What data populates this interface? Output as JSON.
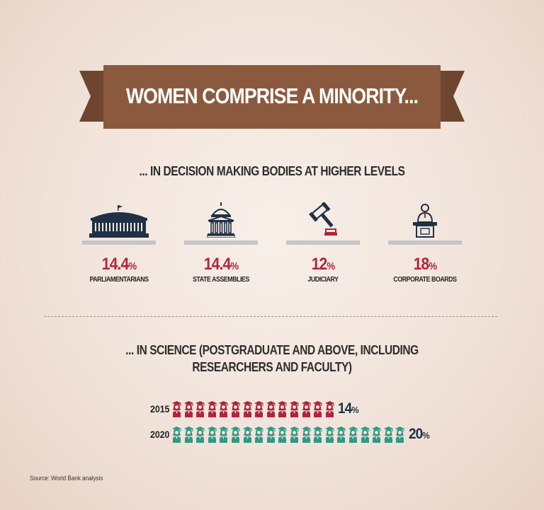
{
  "title": "WOMEN COMPRISE A MINORITY...",
  "section1": {
    "heading": "... IN DECISION MAKING BODIES AT HIGHER LEVELS",
    "stats": [
      {
        "value": "14.4",
        "unit": "%",
        "label": "PARLIAMENTARIANS",
        "icon": "parliament-icon"
      },
      {
        "value": "14.4",
        "unit": "%",
        "label": "STATE ASSEMBLIES",
        "icon": "capitol-building-icon"
      },
      {
        "value": "12",
        "unit": "%",
        "label": "JUDICIARY",
        "icon": "gavel-icon"
      },
      {
        "value": "18",
        "unit": "%",
        "label": "CORPORATE BOARDS",
        "icon": "podium-speaker-icon"
      }
    ]
  },
  "section2": {
    "heading_line1": "... IN SCIENCE (POSTGRADUATE AND ABOVE, INCLUDING",
    "heading_line2": "RESEARCHERS AND FACULTY)",
    "rows": [
      {
        "year": "2015",
        "value": "14",
        "unit": "%",
        "figures": 14,
        "color": "#b0253a",
        "icon": "female-graduate-icon"
      },
      {
        "year": "2020",
        "value": "20",
        "unit": "%",
        "figures": 20,
        "color": "#2e9a86",
        "icon": "female-graduate-icon"
      }
    ]
  },
  "source": "Source: World Bank analysis",
  "colors": {
    "banner": "#8b5a3e",
    "banner_dark": "#6e452f",
    "accent_red": "#b0253a",
    "accent_teal": "#2e9a86",
    "navy": "#203146"
  }
}
